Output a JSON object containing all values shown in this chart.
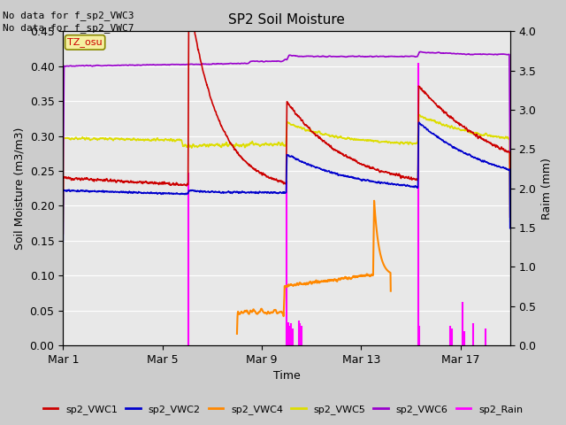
{
  "title": "SP2 Soil Moisture",
  "xlabel": "Time",
  "ylabel_left": "Soil Moisture (m3/m3)",
  "ylabel_right": "Raim (mm)",
  "annotation_lines": [
    "No data for f_sp2_VWC3",
    "No data for f_sp2_VWC7"
  ],
  "tz_label": "TZ_osu",
  "ylim_left": [
    0.0,
    0.45
  ],
  "ylim_right": [
    0.0,
    4.0
  ],
  "xtick_positions": [
    0,
    4,
    8,
    12,
    16
  ],
  "xtick_labels": [
    "Mar 1",
    "Mar 5",
    "Mar 9",
    "Mar 13",
    "Mar 17"
  ],
  "xlim": [
    0,
    18
  ],
  "colors": {
    "vwc1": "#cc0000",
    "vwc2": "#0000cc",
    "vwc4": "#ff8800",
    "vwc5": "#dddd00",
    "vwc6": "#9900cc",
    "rain": "#ff00ff"
  },
  "fig_facecolor": "#cccccc",
  "plot_facecolor": "#e8e8e8",
  "grid_color": "#ffffff"
}
